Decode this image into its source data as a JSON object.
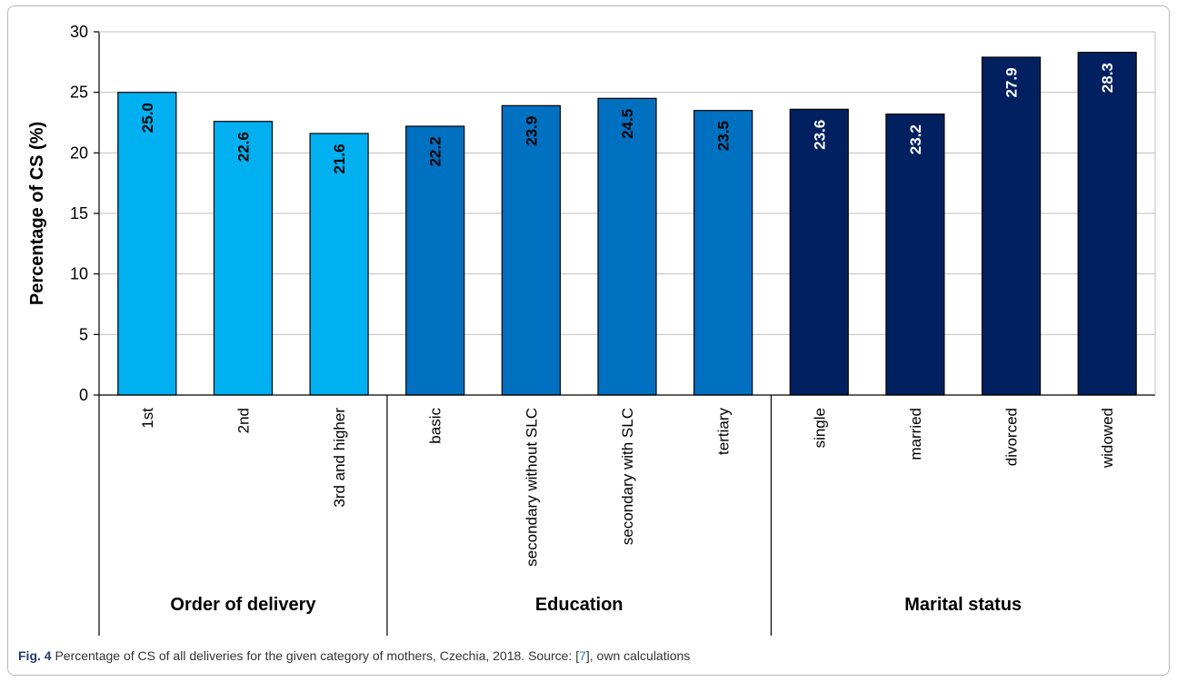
{
  "chart_data": {
    "type": "bar",
    "ylabel": "Percentage of CS (%)",
    "xlabel": "",
    "ylim": [
      0,
      30
    ],
    "yticks": [
      0,
      5,
      10,
      15,
      20,
      25,
      30
    ],
    "grid": true,
    "categories": [
      "1st",
      "2nd",
      "3rd and higher",
      "basic",
      "secondary without SLC",
      "secondary with SLC",
      "tertiary",
      "single",
      "married",
      "divorced",
      "widowed"
    ],
    "values": [
      25.0,
      22.6,
      21.6,
      22.2,
      23.9,
      24.5,
      23.5,
      23.6,
      23.2,
      27.9,
      28.3
    ],
    "value_labels": [
      "25.0",
      "22.6",
      "21.6",
      "22.2",
      "23.9",
      "24.5",
      "23.5",
      "23.6",
      "23.2",
      "27.9",
      "28.3"
    ],
    "groups": [
      {
        "name": "Order of delivery",
        "categories": [
          "1st",
          "2nd",
          "3rd and higher"
        ],
        "color": "#00b0f0"
      },
      {
        "name": "Education",
        "categories": [
          "basic",
          "secondary without SLC",
          "secondary with SLC",
          "tertiary"
        ],
        "color": "#0070c0"
      },
      {
        "name": "Marital status",
        "categories": [
          "single",
          "married",
          "divorced",
          "widowed"
        ],
        "color": "#002060"
      }
    ]
  },
  "caption": {
    "fig_label": "Fig. 4",
    "text_before": "Percentage of CS of all deliveries for the given category of mothers, Czechia, 2018. Source: [",
    "ref": "7",
    "text_after": "], own calculations"
  }
}
